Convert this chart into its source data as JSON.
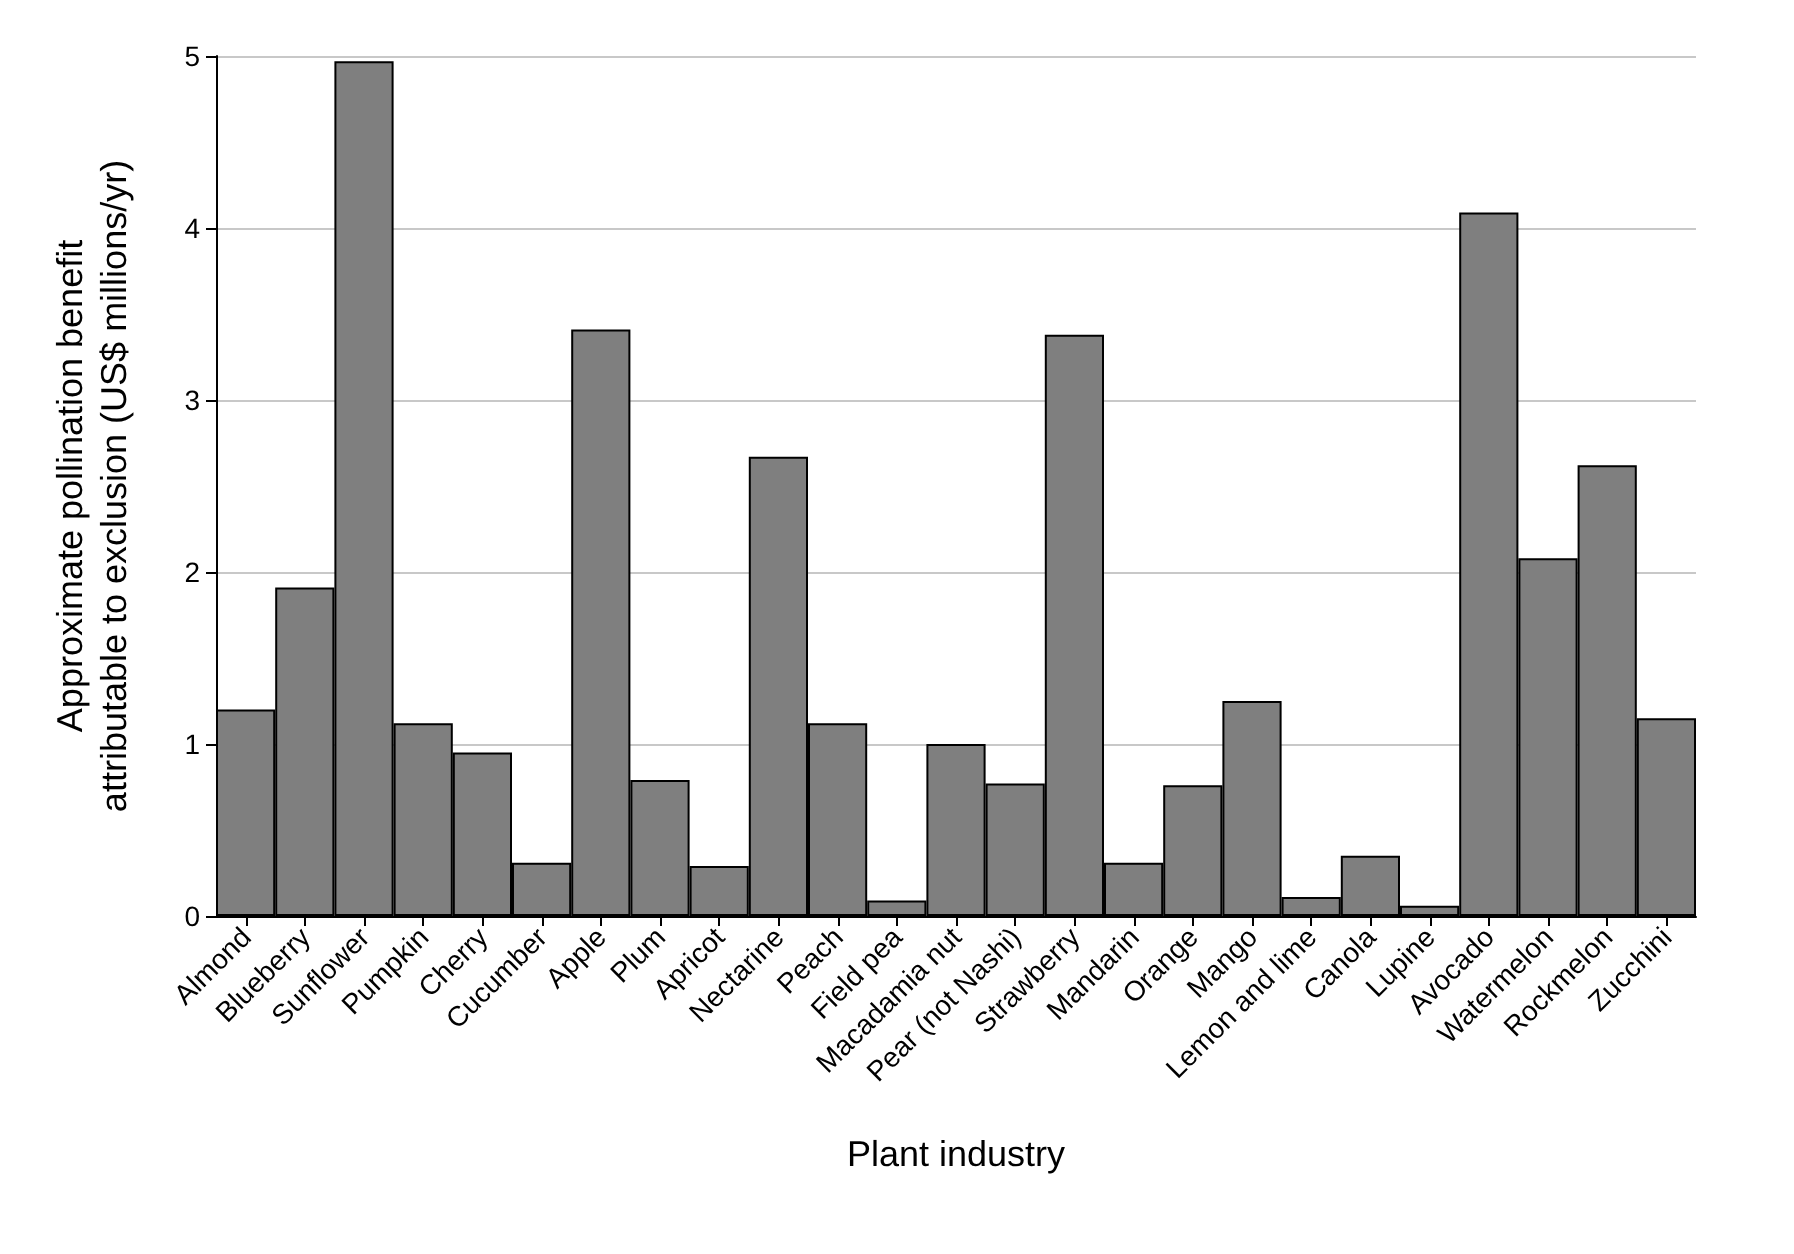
{
  "chart_data": {
    "type": "bar",
    "xlabel": "Plant industry",
    "ylabel": "Approximate pollination benefit\nattributable to exclusion (US$ millions/yr)",
    "categories": [
      "Almond",
      "Blueberry",
      "Sunflower",
      "Pumpkin",
      "Cherry",
      "Cucumber",
      "Apple",
      "Plum",
      "Apricot",
      "Nectarine",
      "Peach",
      "Field pea",
      "Macadamia nut",
      "Pear (not Nashi)",
      "Strawberry",
      "Mandarin",
      "Orange",
      "Mango",
      "Lemon and lime",
      "Canola",
      "Lupine",
      "Avocado",
      "Watermelon",
      "Rockmelon",
      "Zucchini"
    ],
    "values": [
      1.2,
      1.91,
      4.97,
      1.12,
      0.95,
      0.31,
      3.41,
      0.79,
      0.29,
      2.67,
      1.12,
      0.09,
      1.0,
      0.77,
      3.38,
      0.31,
      0.76,
      1.25,
      0.11,
      0.35,
      0.06,
      4.09,
      2.08,
      2.62,
      1.15
    ],
    "color": "#7f7f7f",
    "ylim": [
      0,
      5
    ],
    "yticks": [
      0,
      1,
      2,
      3,
      4,
      5
    ],
    "grid": "y"
  }
}
